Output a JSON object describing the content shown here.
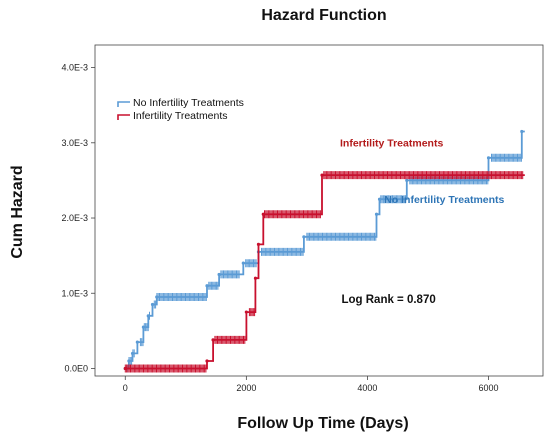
{
  "chart_data": {
    "type": "line",
    "title": "Hazard Function",
    "xlabel": "Follow Up Time (Days)",
    "ylabel": "Cum Hazard",
    "xlim": [
      -500,
      6900
    ],
    "ylim": [
      -0.0001,
      0.0043
    ],
    "x_ticks": [
      0,
      2000,
      4000,
      6000
    ],
    "x_tick_labels": [
      "0",
      "2000",
      "4000",
      "6000"
    ],
    "y_ticks": [
      0.0,
      0.001,
      0.002,
      0.003,
      0.004
    ],
    "y_tick_labels": [
      "0.0E0",
      "1.0E-3",
      "2.0E-3",
      "3.0E-3",
      "4.0E-3"
    ],
    "grid": false,
    "legend_position": "top-left",
    "colors": {
      "no_treat": "#5b9bd5",
      "treat": "#c8102e",
      "annotation_treat": "#b31b1b",
      "annotation_no_treat": "#2e75b6"
    },
    "series": [
      {
        "name": "No Infertility Treatments",
        "color": "#5b9bd5",
        "steps": [
          [
            0,
            0.0
          ],
          [
            60,
            0.0001
          ],
          [
            120,
            0.0002
          ],
          [
            200,
            0.00035
          ],
          [
            300,
            0.00055
          ],
          [
            380,
            0.0007
          ],
          [
            450,
            0.00085
          ],
          [
            520,
            0.00095
          ],
          [
            1350,
            0.0011
          ],
          [
            1550,
            0.00125
          ],
          [
            1950,
            0.0014
          ],
          [
            2200,
            0.00155
          ],
          [
            2950,
            0.00175
          ],
          [
            4150,
            0.00205
          ],
          [
            4200,
            0.00225
          ],
          [
            4650,
            0.0025
          ],
          [
            6000,
            0.0028
          ],
          [
            6550,
            0.00315
          ]
        ],
        "x_end": 6600,
        "censor_ranges": [
          [
            40,
            160
          ],
          [
            250,
            420
          ],
          [
            480,
            1350
          ],
          [
            1380,
            1540
          ],
          [
            1580,
            1900
          ],
          [
            1990,
            2180
          ],
          [
            2250,
            2950
          ],
          [
            3000,
            4150
          ],
          [
            4220,
            4640
          ],
          [
            4700,
            6000
          ],
          [
            6050,
            6550
          ]
        ]
      },
      {
        "name": "Infertility Treatments",
        "color": "#c8102e",
        "steps": [
          [
            0,
            0.0
          ],
          [
            1350,
            0.0001
          ],
          [
            1450,
            0.00038
          ],
          [
            2000,
            0.00075
          ],
          [
            2150,
            0.0012
          ],
          [
            2200,
            0.00165
          ],
          [
            2280,
            0.00205
          ],
          [
            3250,
            0.00257
          ]
        ],
        "x_end": 6600,
        "censor_ranges": [
          [
            0,
            1350
          ],
          [
            1480,
            1990
          ],
          [
            2050,
            2140
          ],
          [
            2300,
            3240
          ],
          [
            3280,
            6580
          ]
        ]
      }
    ],
    "annotations": [
      {
        "text": "Infertility Treatments",
        "x": 4400,
        "y": 0.00295,
        "color": "#b31b1b"
      },
      {
        "text": "No Infertility Treatments",
        "x": 5270,
        "y": 0.0022,
        "color": "#2e75b6"
      },
      {
        "text": "Log Rank = 0.870",
        "x": 4350,
        "y": 0.00087,
        "color": "#111111"
      }
    ]
  }
}
